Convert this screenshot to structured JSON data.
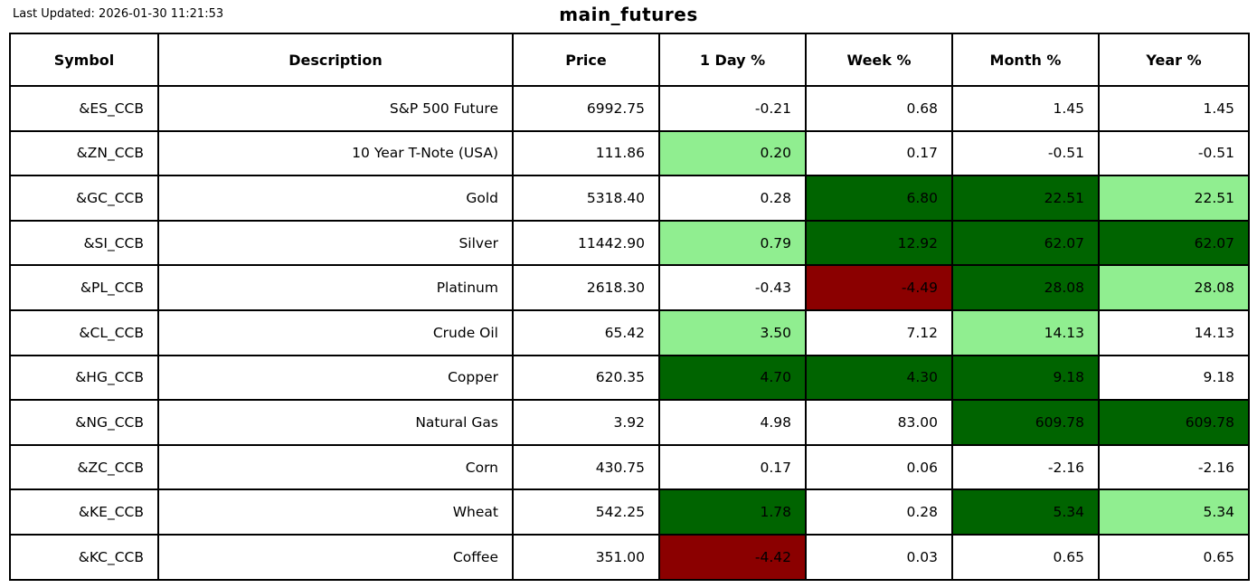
{
  "header": {
    "last_updated": "Last Updated: 2026-01-30 11:21:53"
  },
  "palette": {
    "positive_strong": "#006400",
    "positive_mild": "#90EE90",
    "negative_strong": "#8B0000",
    "neutral": "#FFFFFF",
    "border": "#000000",
    "text": "#000000"
  },
  "chart_data": {
    "type": "table",
    "title": "main_futures",
    "columns": [
      "Symbol",
      "Description",
      "Price",
      "1 Day %",
      "Week %",
      "Month %",
      "Year %"
    ],
    "rows": [
      {
        "symbol": "&ES_CCB",
        "description": "S&P 500 Future",
        "price": "6992.75",
        "cells": [
          {
            "value": "-0.21",
            "bg": "neutral"
          },
          {
            "value": "0.68",
            "bg": "neutral"
          },
          {
            "value": "1.45",
            "bg": "neutral"
          },
          {
            "value": "1.45",
            "bg": "neutral"
          }
        ]
      },
      {
        "symbol": "&ZN_CCB",
        "description": "10 Year T-Note (USA)",
        "price": "111.86",
        "cells": [
          {
            "value": "0.20",
            "bg": "positive_mild"
          },
          {
            "value": "0.17",
            "bg": "neutral"
          },
          {
            "value": "-0.51",
            "bg": "neutral"
          },
          {
            "value": "-0.51",
            "bg": "neutral"
          }
        ]
      },
      {
        "symbol": "&GC_CCB",
        "description": "Gold",
        "price": "5318.40",
        "cells": [
          {
            "value": "0.28",
            "bg": "neutral"
          },
          {
            "value": "6.80",
            "bg": "positive_strong"
          },
          {
            "value": "22.51",
            "bg": "positive_strong"
          },
          {
            "value": "22.51",
            "bg": "positive_mild"
          }
        ]
      },
      {
        "symbol": "&SI_CCB",
        "description": "Silver",
        "price": "11442.90",
        "cells": [
          {
            "value": "0.79",
            "bg": "positive_mild"
          },
          {
            "value": "12.92",
            "bg": "positive_strong"
          },
          {
            "value": "62.07",
            "bg": "positive_strong"
          },
          {
            "value": "62.07",
            "bg": "positive_strong"
          }
        ]
      },
      {
        "symbol": "&PL_CCB",
        "description": "Platinum",
        "price": "2618.30",
        "cells": [
          {
            "value": "-0.43",
            "bg": "neutral"
          },
          {
            "value": "-4.49",
            "bg": "negative_strong"
          },
          {
            "value": "28.08",
            "bg": "positive_strong"
          },
          {
            "value": "28.08",
            "bg": "positive_mild"
          }
        ]
      },
      {
        "symbol": "&CL_CCB",
        "description": "Crude Oil",
        "price": "65.42",
        "cells": [
          {
            "value": "3.50",
            "bg": "positive_mild"
          },
          {
            "value": "7.12",
            "bg": "neutral"
          },
          {
            "value": "14.13",
            "bg": "positive_mild"
          },
          {
            "value": "14.13",
            "bg": "neutral"
          }
        ]
      },
      {
        "symbol": "&HG_CCB",
        "description": "Copper",
        "price": "620.35",
        "cells": [
          {
            "value": "4.70",
            "bg": "positive_strong"
          },
          {
            "value": "4.30",
            "bg": "positive_strong"
          },
          {
            "value": "9.18",
            "bg": "positive_strong"
          },
          {
            "value": "9.18",
            "bg": "neutral"
          }
        ]
      },
      {
        "symbol": "&NG_CCB",
        "description": "Natural Gas",
        "price": "3.92",
        "cells": [
          {
            "value": "4.98",
            "bg": "neutral"
          },
          {
            "value": "83.00",
            "bg": "neutral"
          },
          {
            "value": "609.78",
            "bg": "positive_strong"
          },
          {
            "value": "609.78",
            "bg": "positive_strong"
          }
        ]
      },
      {
        "symbol": "&ZC_CCB",
        "description": "Corn",
        "price": "430.75",
        "cells": [
          {
            "value": "0.17",
            "bg": "neutral"
          },
          {
            "value": "0.06",
            "bg": "neutral"
          },
          {
            "value": "-2.16",
            "bg": "neutral"
          },
          {
            "value": "-2.16",
            "bg": "neutral"
          }
        ]
      },
      {
        "symbol": "&KE_CCB",
        "description": "Wheat",
        "price": "542.25",
        "cells": [
          {
            "value": "1.78",
            "bg": "positive_strong"
          },
          {
            "value": "0.28",
            "bg": "neutral"
          },
          {
            "value": "5.34",
            "bg": "positive_strong"
          },
          {
            "value": "5.34",
            "bg": "positive_mild"
          }
        ]
      },
      {
        "symbol": "&KC_CCB",
        "description": "Coffee",
        "price": "351.00",
        "cells": [
          {
            "value": "-4.42",
            "bg": "negative_strong"
          },
          {
            "value": "0.03",
            "bg": "neutral"
          },
          {
            "value": "0.65",
            "bg": "neutral"
          },
          {
            "value": "0.65",
            "bg": "neutral"
          }
        ]
      }
    ]
  }
}
